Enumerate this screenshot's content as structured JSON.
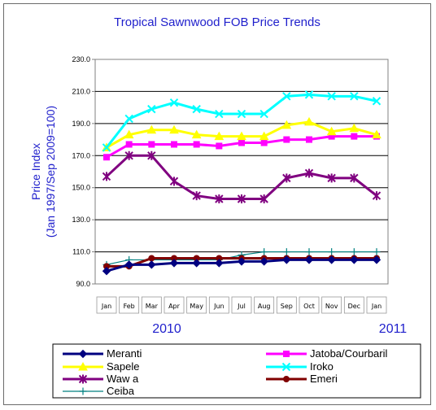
{
  "chart_data": {
    "type": "line",
    "title": "Tropical Sawnwood FOB Price Trends",
    "ylabel_line1": "Price Index",
    "ylabel_line2": "(Jan 1997/Sep 2009=100)",
    "xlabel": "",
    "categories": [
      "Jan",
      "Feb",
      "Mar",
      "Apr",
      "May",
      "Jun",
      "Jul",
      "Aug",
      "Sep",
      "Oct",
      "Nov",
      "Dec",
      "Jan"
    ],
    "ylim": [
      90,
      230
    ],
    "yticks": [
      "90.0",
      "110.0",
      "130.0",
      "150.0",
      "170.0",
      "190.0",
      "210.0",
      "230.0"
    ],
    "grid": true,
    "legend_position": "bottom",
    "year_labels": {
      "start": "2010",
      "end": "2011"
    },
    "series": [
      {
        "name": "Meranti",
        "color": "#000080",
        "marker": "diamond",
        "values": [
          98,
          102,
          102,
          103,
          103,
          103,
          104,
          104,
          105,
          105,
          105,
          105,
          105
        ]
      },
      {
        "name": "Jatoba/Courbaril",
        "color": "#ff00ff",
        "marker": "square",
        "values": [
          169,
          177,
          177,
          177,
          177,
          176,
          178,
          178,
          180,
          180,
          182,
          182,
          182
        ]
      },
      {
        "name": "Sapele",
        "color": "#ffff00",
        "marker": "triangle",
        "values": [
          175,
          183,
          186,
          186,
          183,
          182,
          182,
          182,
          189,
          191,
          185,
          187,
          183
        ]
      },
      {
        "name": "Iroko",
        "color": "#00ffff",
        "marker": "x",
        "values": [
          175,
          193,
          199,
          203,
          199,
          196,
          196,
          196,
          207,
          208,
          207,
          207,
          204
        ]
      },
      {
        "name": "Waw a",
        "color": "#800080",
        "marker": "asterisk",
        "values": [
          157,
          170,
          170,
          154,
          145,
          143,
          143,
          143,
          156,
          159,
          156,
          156,
          145
        ]
      },
      {
        "name": "Emeri",
        "color": "#800000",
        "marker": "circle",
        "values": [
          101,
          101,
          106,
          106,
          106,
          106,
          106,
          106,
          106,
          106,
          106,
          106,
          106
        ]
      },
      {
        "name": "Ceiba",
        "color": "#008080",
        "marker": "plus",
        "values": [
          102,
          105,
          105,
          105,
          105,
          105,
          108,
          110,
          110,
          110,
          110,
          110,
          110
        ]
      }
    ]
  }
}
